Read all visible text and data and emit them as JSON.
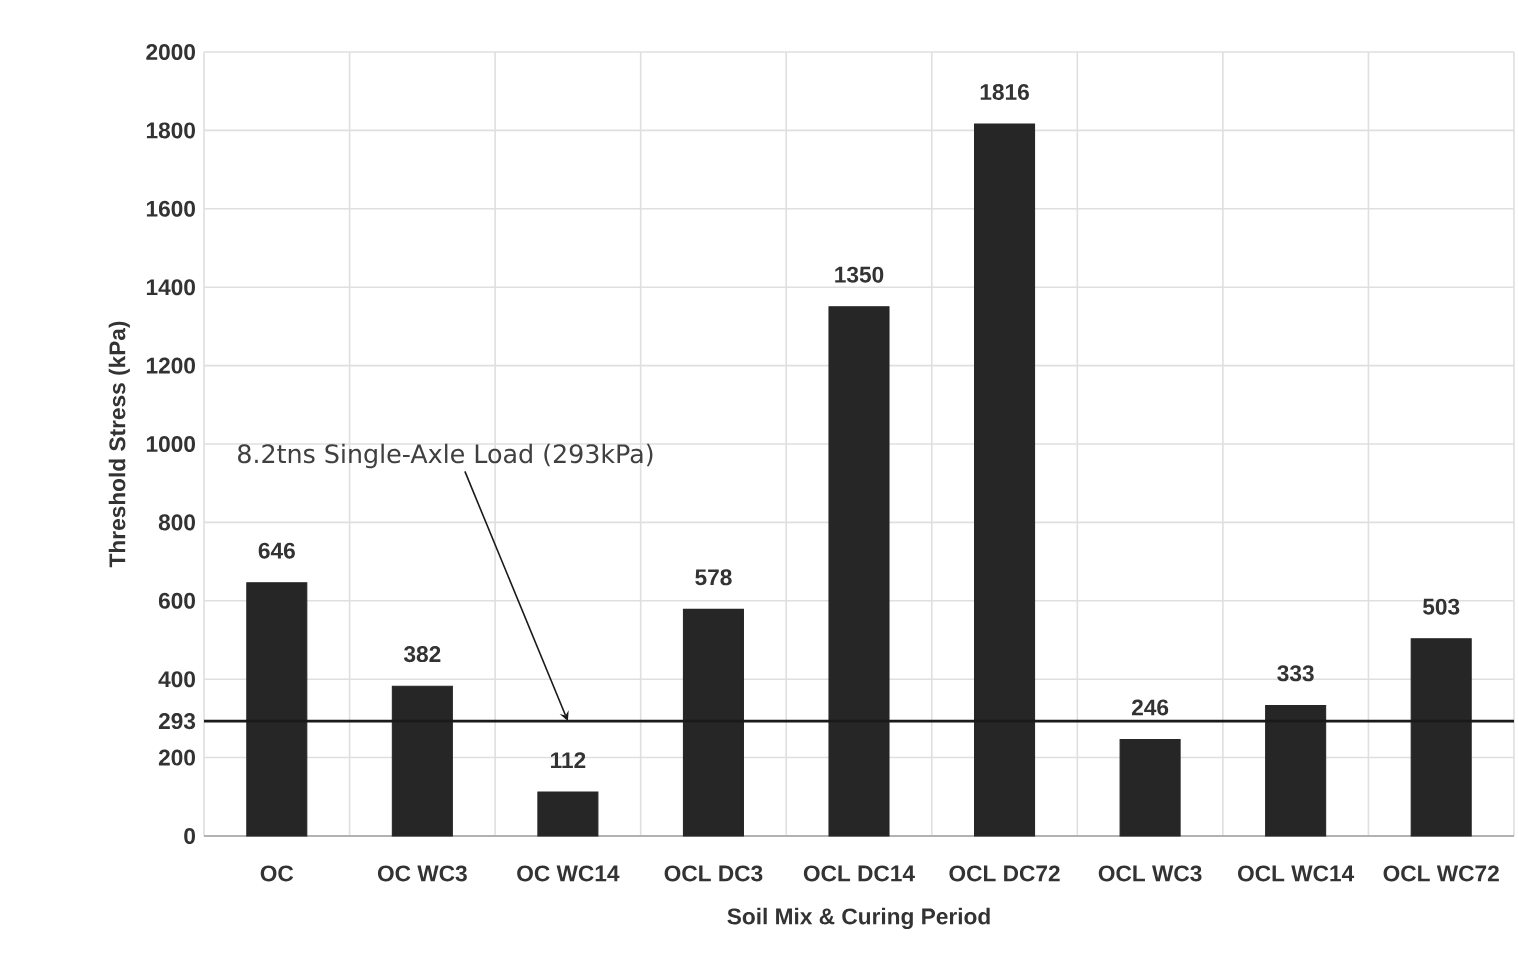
{
  "chart_data": {
    "type": "bar",
    "xlabel": "Soil Mix & Curing Period",
    "ylabel": "Threshold Stress (kPa)",
    "categories": [
      "OC",
      "OC WC3",
      "OC WC14",
      "OCL DC3",
      "OCL DC14",
      "OCL DC72",
      "OCL WC3",
      "OCL WC14",
      "OCL WC72"
    ],
    "values": [
      646,
      382,
      112,
      578,
      1350,
      1816,
      246,
      333,
      503
    ],
    "color": "#262626",
    "ylim": [
      0,
      2000
    ],
    "yticks": [
      0,
      200,
      293,
      400,
      600,
      800,
      1000,
      1200,
      1400,
      1600,
      1800,
      2000
    ],
    "ref_lines": [
      {
        "axis": "y",
        "value": 293,
        "label": "8.2tns Single-Axle Load (293kPa)",
        "color": "#1a1a1a"
      }
    ],
    "data_labels": true,
    "grid": true
  }
}
